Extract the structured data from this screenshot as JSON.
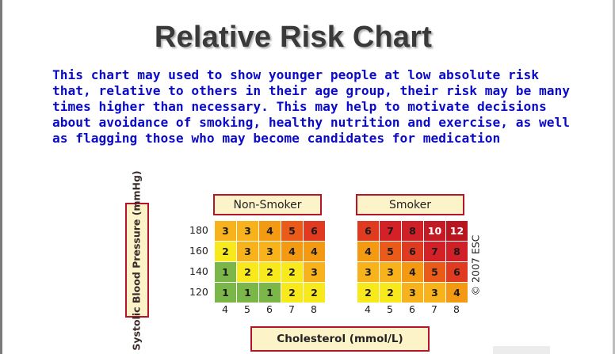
{
  "slide": {
    "title": "Relative Risk Chart",
    "description": "This chart may used to show younger people at low absolute risk that, relative to others in their age group, their risk may be many times higher than necessary. This may help to motivate decisions about avoidance of smoking, healthy nutrition and exercise, as well as flagging those who may become candidates for medication"
  },
  "risk_chart": {
    "y_axis_label": "Systolic Blood Pressure (mmHg)",
    "x_axis_label": "Cholesterol (mmol/L)",
    "copyright": "© 2007 ESC",
    "blood_pressure_levels": [
      "180",
      "160",
      "140",
      "120"
    ],
    "cholesterol_levels": [
      "4",
      "5",
      "6",
      "7",
      "8"
    ],
    "panels": [
      {
        "name": "Non-Smoker",
        "values": [
          [
            3,
            3,
            4,
            5,
            6
          ],
          [
            2,
            3,
            3,
            4,
            4
          ],
          [
            1,
            2,
            2,
            2,
            3
          ],
          [
            1,
            1,
            1,
            2,
            2
          ]
        ]
      },
      {
        "name": "Smoker",
        "values": [
          [
            6,
            7,
            8,
            10,
            12
          ],
          [
            4,
            5,
            6,
            7,
            8
          ],
          [
            3,
            3,
            4,
            5,
            6
          ],
          [
            2,
            2,
            3,
            3,
            4
          ]
        ]
      }
    ],
    "risk_colors": {
      "1": "#7ab648",
      "2": "#f7e91c",
      "3": "#f7b21c",
      "4": "#f39a12",
      "5": "#ea5a18",
      "6": "#e03a20",
      "7": "#d42027",
      "8": "#cf1f27",
      "10": "#c41a26",
      "12": "#b8151f"
    },
    "border_color": "#b5152b",
    "label_fill": "#fdf3c9"
  }
}
